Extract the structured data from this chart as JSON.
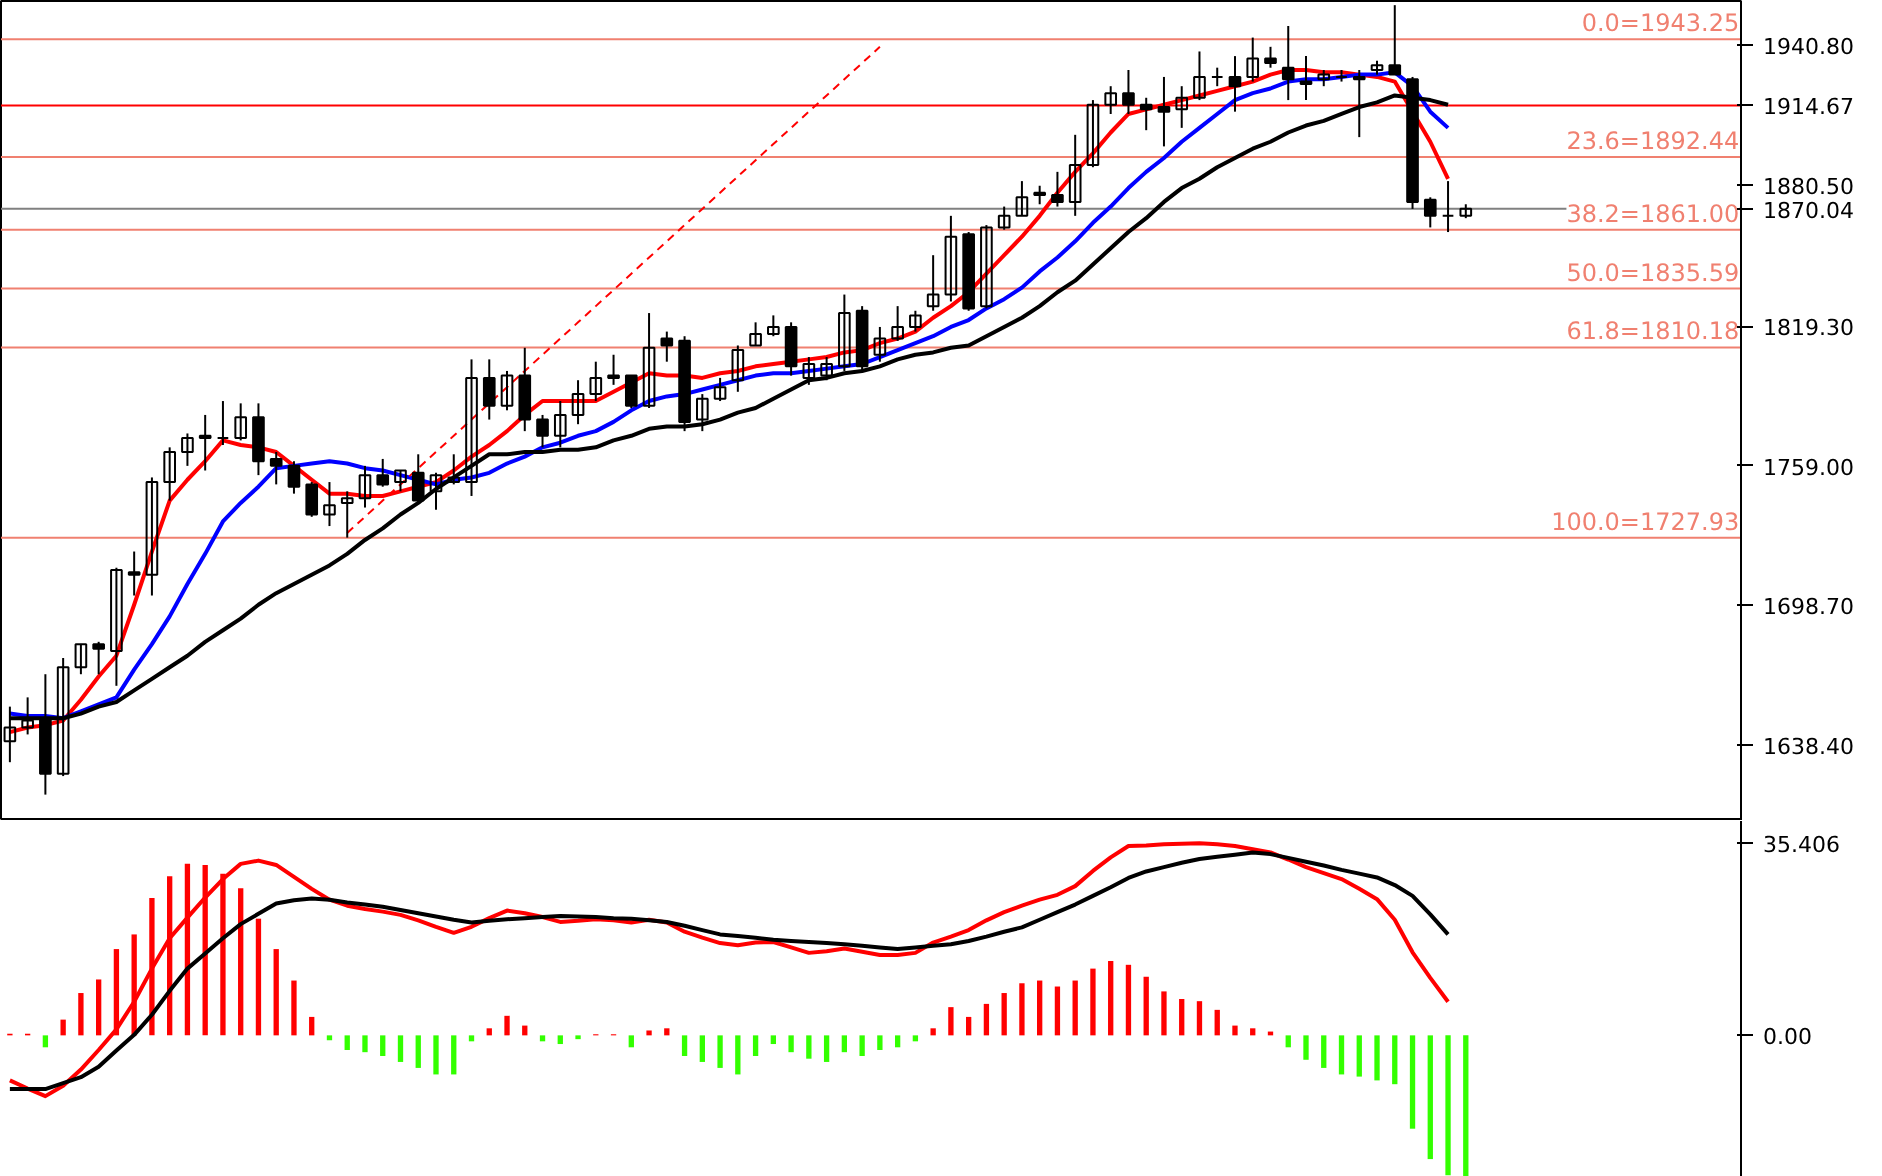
{
  "chart_data": [
    {
      "type": "candlestick",
      "categories": [
        null,
        null,
        null,
        null,
        null,
        null,
        null,
        null,
        null,
        null,
        null,
        null,
        null,
        null,
        null,
        null,
        null,
        null,
        null,
        null,
        null,
        null,
        null,
        null,
        null,
        null,
        null,
        null,
        null,
        null,
        null,
        null,
        null,
        null,
        null,
        null,
        null,
        null,
        null,
        null,
        null,
        null,
        null,
        null,
        null,
        null,
        null,
        null,
        null,
        null,
        null,
        null,
        null,
        null,
        null,
        null,
        null,
        null,
        null,
        null,
        null,
        null,
        null,
        null,
        null,
        null,
        null,
        null,
        null,
        null,
        null,
        null,
        null,
        null,
        null,
        null,
        null,
        null,
        null,
        null,
        null,
        null,
        null,
        null,
        null,
        null,
        null,
        null,
        null,
        null,
        null,
        null,
        null,
        null,
        null,
        null,
        null,
        null
      ],
      "ohlc": [
        [
          1640,
          1655,
          1631,
          1646
        ],
        [
          1646,
          1659,
          1643,
          1649
        ],
        [
          1650,
          1669,
          1617,
          1626
        ],
        [
          1626,
          1676,
          1625,
          1672
        ],
        [
          1672,
          1682,
          1669,
          1682
        ],
        [
          1682,
          1683,
          1669,
          1680
        ],
        [
          1679,
          1715,
          1664,
          1714
        ],
        [
          1713,
          1722,
          1703,
          1712
        ],
        [
          1712,
          1754,
          1703,
          1752
        ],
        [
          1752,
          1767,
          1744,
          1765
        ],
        [
          1765,
          1773,
          1759,
          1771
        ],
        [
          1772,
          1781,
          1757,
          1771
        ],
        [
          1771,
          1787,
          1768,
          1771
        ],
        [
          1771,
          1786,
          1770,
          1780
        ],
        [
          1780,
          1786,
          1755,
          1761
        ],
        [
          1762,
          1765,
          1751,
          1759
        ],
        [
          1759,
          1761,
          1747,
          1750
        ],
        [
          1751,
          1752,
          1737,
          1738
        ],
        [
          1738,
          1752,
          1733,
          1742
        ],
        [
          1743,
          1748,
          1728,
          1745
        ],
        [
          1745,
          1759,
          1741,
          1755
        ],
        [
          1755,
          1762,
          1750,
          1751
        ],
        [
          1752,
          1757,
          1748,
          1757
        ],
        [
          1756,
          1764,
          1743,
          1744
        ],
        [
          1748,
          1756,
          1740,
          1755
        ],
        [
          1752,
          1764,
          1751,
          1754
        ],
        [
          1752,
          1805,
          1746,
          1797
        ],
        [
          1797,
          1805,
          1779,
          1785
        ],
        [
          1785,
          1800,
          1783,
          1798
        ],
        [
          1798,
          1810,
          1774,
          1779
        ],
        [
          1779,
          1781,
          1767,
          1772
        ],
        [
          1772,
          1787,
          1767,
          1781
        ],
        [
          1781,
          1796,
          1777,
          1790
        ],
        [
          1790,
          1804,
          1787,
          1797
        ],
        [
          1798,
          1807,
          1794,
          1797
        ],
        [
          1798,
          1798,
          1784,
          1785
        ],
        [
          1785,
          1825,
          1784,
          1810
        ],
        [
          1814,
          1817,
          1804,
          1811
        ],
        [
          1813,
          1815,
          1774,
          1778
        ],
        [
          1779,
          1790,
          1774,
          1788
        ],
        [
          1788,
          1797,
          1787,
          1793
        ],
        [
          1796,
          1811,
          1791,
          1809
        ],
        [
          1811,
          1821,
          1811,
          1816
        ],
        [
          1816,
          1824,
          1815,
          1819
        ],
        [
          1819,
          1821,
          1798,
          1802
        ],
        [
          1797,
          1806,
          1794,
          1803
        ],
        [
          1798,
          1806,
          1796,
          1803
        ],
        [
          1802,
          1833,
          1800,
          1825
        ],
        [
          1826,
          1828,
          1800,
          1802
        ],
        [
          1807,
          1819,
          1804,
          1814
        ],
        [
          1814,
          1828,
          1813,
          1819
        ],
        [
          1819,
          1826,
          1817,
          1824
        ],
        [
          1828,
          1850,
          1826,
          1833
        ],
        [
          1833,
          1867,
          1830,
          1858
        ],
        [
          1859,
          1860,
          1826,
          1827
        ],
        [
          1828,
          1863,
          1827,
          1862
        ],
        [
          1862,
          1871,
          1861,
          1867
        ],
        [
          1867,
          1882,
          1867,
          1875
        ],
        [
          1877,
          1880,
          1872,
          1876
        ],
        [
          1876,
          1886,
          1871,
          1873
        ],
        [
          1873,
          1902,
          1867,
          1889
        ],
        [
          1889,
          1917,
          1888,
          1915
        ],
        [
          1915,
          1923,
          1911,
          1920
        ],
        [
          1920,
          1930,
          1911,
          1915
        ],
        [
          1915,
          1918,
          1904,
          1913
        ],
        [
          1914,
          1927,
          1897,
          1912
        ],
        [
          1913,
          1923,
          1905,
          1918
        ],
        [
          1918,
          1938,
          1917,
          1927
        ],
        [
          1927,
          1931,
          1923,
          1927
        ],
        [
          1927,
          1936,
          1912,
          1923
        ],
        [
          1927,
          1944,
          1925,
          1935
        ],
        [
          1935,
          1940,
          1931,
          1933
        ],
        [
          1931,
          1949,
          1917,
          1926
        ],
        [
          1925,
          1936,
          1917,
          1924
        ],
        [
          1926,
          1930,
          1923,
          1928
        ],
        [
          1927,
          1930,
          1925,
          1927
        ],
        [
          1927,
          1930,
          1901,
          1926
        ],
        [
          1930,
          1934,
          1928,
          1932
        ],
        [
          1932,
          1958,
          1928,
          1928
        ],
        [
          1926,
          1927,
          1870,
          1873
        ],
        [
          1874,
          1875,
          1862,
          1867
        ],
        [
          1867,
          1882,
          1860,
          1867
        ],
        [
          1867,
          1872,
          1866,
          1870.04
        ],
        null,
        null,
        null,
        null,
        null,
        null,
        null,
        null,
        null,
        null,
        null,
        null,
        null,
        null,
        null
      ],
      "series": [
        {
          "type": "line",
          "color": "#ff0000",
          "values": [
            1644,
            1646,
            1647,
            1649,
            1658,
            1668,
            1677,
            1699,
            1722,
            1744,
            1753,
            1761,
            1770,
            1768,
            1767,
            1765,
            1759,
            1753,
            1747,
            1747,
            1746,
            1746,
            1748,
            1750,
            1752,
            1757,
            1763,
            1768,
            1774,
            1781,
            1787,
            1787,
            1787,
            1787,
            1791,
            1795,
            1799,
            1798,
            1798,
            1797,
            1799,
            1800,
            1802,
            1803,
            1804,
            1805,
            1806,
            1808,
            1809,
            1812,
            1814,
            1817,
            1823,
            1828,
            1834,
            1842,
            1850,
            1858,
            1867,
            1877,
            1886,
            1894,
            1903,
            1911,
            1913,
            1915,
            1917,
            1919,
            1921,
            1923,
            1925,
            1928,
            1930,
            1930,
            1929,
            1929,
            1928,
            1927,
            1925,
            1912,
            1899,
            1883,
            null,
            null,
            null,
            null,
            null,
            null,
            null,
            null,
            null,
            null,
            null,
            null,
            null,
            null,
            null,
            null
          ]
        },
        {
          "type": "line",
          "color": "#0000ff",
          "values": [
            1652,
            1651,
            1651,
            1650,
            1653,
            1656,
            1659,
            1671,
            1682,
            1694,
            1708,
            1721,
            1735,
            1743,
            1750,
            1758,
            1759,
            1760,
            1761,
            1760,
            1758,
            1757,
            1755,
            1753,
            1751,
            1753,
            1754,
            1756,
            1760,
            1763,
            1767,
            1769,
            1772,
            1774,
            1778,
            1783,
            1787,
            1789,
            1790,
            1792,
            1794,
            1796,
            1798,
            1799,
            1799,
            1800,
            1801,
            1802,
            1803,
            1806,
            1809,
            1812,
            1815,
            1819,
            1822,
            1827,
            1831,
            1836,
            1843,
            1849,
            1856,
            1864,
            1871,
            1879,
            1886,
            1892,
            1899,
            1905,
            1911,
            1917,
            1920,
            1922,
            1925,
            1926,
            1926,
            1927,
            1928,
            1928,
            1929,
            1923,
            1912,
            1905,
            null,
            null,
            null,
            null,
            null,
            null,
            null,
            null,
            null,
            null,
            null,
            null,
            null,
            null,
            null,
            null
          ]
        },
        {
          "type": "line",
          "color": "#000000",
          "values": [
            1650,
            1650,
            1650,
            1650,
            1652,
            1655,
            1657,
            1662,
            1667,
            1672,
            1677,
            1683,
            1688,
            1693,
            1699,
            1704,
            1708,
            1712,
            1716,
            1721,
            1727,
            1732,
            1738,
            1743,
            1749,
            1754,
            1759,
            1764,
            1764,
            1765,
            1765,
            1766,
            1766,
            1767,
            1770,
            1772,
            1775,
            1776,
            1776,
            1777,
            1779,
            1782,
            1784,
            1788,
            1792,
            1796,
            1797,
            1799,
            1800,
            1802,
            1805,
            1807,
            1808,
            1810,
            1811,
            1815,
            1819,
            1823,
            1828,
            1834,
            1839,
            1846,
            1853,
            1860,
            1866,
            1873,
            1879,
            1883,
            1888,
            1892,
            1896,
            1899,
            1903,
            1906,
            1908,
            1911,
            1914,
            1916,
            1919,
            1918,
            1917,
            1915,
            null,
            null,
            null,
            null,
            null,
            null,
            null,
            null,
            null,
            null,
            null,
            null,
            null,
            null,
            null,
            null
          ]
        },
        {
          "type": "line",
          "color": "#ff0000",
          "line_style": "dashed",
          "values": [
            null,
            null,
            null,
            null,
            null,
            null,
            null,
            null,
            null,
            null,
            null,
            null,
            null,
            null,
            null,
            null,
            null,
            null,
            null,
            1730,
            1737,
            1744,
            1751,
            1758,
            1765,
            1772,
            1779,
            1786,
            1793,
            1800,
            1807,
            1814,
            1821,
            1828,
            1835,
            1842,
            1849,
            1856,
            1863,
            1870,
            1877,
            1884,
            1891,
            1898,
            1905,
            1912,
            1919,
            1926,
            1933,
            1940,
            null,
            null,
            null,
            null,
            null,
            null,
            null,
            null,
            null,
            null,
            null,
            null,
            null,
            null,
            null,
            null,
            null,
            null,
            null,
            null,
            null,
            null,
            null,
            null,
            null,
            null,
            null,
            null,
            null,
            null,
            null,
            null,
            null,
            null,
            null,
            null,
            null,
            null,
            null,
            null,
            null,
            null,
            null,
            null,
            null,
            null,
            null,
            null
          ]
        }
      ],
      "ylim": [
        1605.6,
        1959.8
      ],
      "yticks": [
        {
          "value": 1638.4,
          "label": "1638.40"
        },
        {
          "value": 1698.7,
          "label": "1698.70"
        },
        {
          "value": 1759,
          "label": "1759.00"
        },
        {
          "value": 1819.3,
          "label": "1819.30"
        },
        {
          "value": 1880.5,
          "label": "1880.50"
        },
        {
          "value": 1940.8,
          "label": "1940.80"
        },
        {
          "value": 1914.67,
          "label": "1914.67"
        },
        {
          "value": 1870.04,
          "label": "1870.04"
        }
      ],
      "tick_labels": "y",
      "ref_lines": [
        {
          "axis": "y",
          "value": 1943.25,
          "label": "0.0=1943.25",
          "color": "#f08070"
        },
        {
          "axis": "y",
          "value": 1892.44,
          "label": "23.6=1892.44",
          "color": "#f08070"
        },
        {
          "axis": "y",
          "value": 1861.0,
          "label": "38.2=1861.00",
          "color": "#f08070"
        },
        {
          "axis": "y",
          "value": 1835.59,
          "label": "50.0=1835.59",
          "color": "#f08070"
        },
        {
          "axis": "y",
          "value": 1810.18,
          "label": "61.8=1810.18",
          "color": "#f08070"
        },
        {
          "axis": "y",
          "value": 1727.93,
          "label": "100.0=1727.93",
          "color": "#f08070"
        },
        {
          "axis": "y",
          "value": 1914.67,
          "color": "#ff0000"
        },
        {
          "axis": "y",
          "value": 1870.04,
          "color": "#808080"
        }
      ]
    },
    {
      "type": "bar",
      "categories": [
        null,
        null,
        null,
        null,
        null,
        null,
        null,
        null,
        null,
        null,
        null,
        null,
        null,
        null,
        null,
        null,
        null,
        null,
        null,
        null,
        null,
        null,
        null,
        null,
        null,
        null,
        null,
        null,
        null,
        null,
        null,
        null,
        null,
        null,
        null,
        null,
        null,
        null,
        null,
        null,
        null,
        null,
        null,
        null,
        null,
        null,
        null,
        null,
        null,
        null,
        null,
        null,
        null,
        null,
        null,
        null,
        null,
        null,
        null,
        null,
        null,
        null,
        null,
        null,
        null,
        null,
        null,
        null,
        null,
        null,
        null,
        null,
        null,
        null,
        null,
        null,
        null,
        null,
        null,
        null,
        null,
        null,
        null,
        null,
        null,
        null,
        null,
        null,
        null,
        null,
        null,
        null,
        null,
        null,
        null,
        null,
        null,
        null
      ],
      "series": [
        {
          "type": "bar",
          "values": [
            0.3,
            0.3,
            -2.2,
            2.9,
            7.8,
            10.3,
            15.9,
            18.6,
            25.3,
            29.3,
            31.6,
            31.4,
            29.8,
            27.1,
            21.5,
            15.9,
            10.1,
            3.4,
            -0.9,
            -2.7,
            -3.1,
            -3.8,
            -4.9,
            -6.0,
            -7.2,
            -7.2,
            -1.1,
            1.3,
            3.6,
            1.8,
            -1.1,
            -1.6,
            -0.7,
            0.2,
            0.2,
            -2.2,
            0.9,
            1.3,
            -3.8,
            -4.9,
            -6.0,
            -7.2,
            -3.8,
            -1.6,
            -3.1,
            -4.3,
            -4.9,
            -3.1,
            -3.8,
            -2.7,
            -2.2,
            -1.1,
            1.3,
            5.2,
            3.4,
            5.8,
            7.8,
            9.6,
            10.1,
            9.0,
            10.1,
            12.3,
            13.7,
            13.0,
            10.8,
            8.1,
            6.7,
            6.3,
            4.7,
            1.8,
            1.3,
            0.7,
            -2.2,
            -4.5,
            -6.0,
            -7.2,
            -7.6,
            -8.3,
            -9.0,
            -17.2,
            -22.8,
            -25.8,
            -26.0,
            null,
            null,
            null,
            null,
            null,
            null,
            null,
            null,
            null,
            null,
            null,
            null,
            null,
            null,
            null
          ],
          "colors": [
            "#ff0000",
            "#ff0000",
            "#33ff00",
            "#ff0000",
            "#ff0000",
            "#ff0000",
            "#ff0000",
            "#ff0000",
            "#ff0000",
            "#ff0000",
            "#ff0000",
            "#ff0000",
            "#ff0000",
            "#ff0000",
            "#ff0000",
            "#ff0000",
            "#ff0000",
            "#ff0000",
            "#33ff00",
            "#33ff00",
            "#33ff00",
            "#33ff00",
            "#33ff00",
            "#33ff00",
            "#33ff00",
            "#33ff00",
            "#33ff00",
            "#ff0000",
            "#ff0000",
            "#ff0000",
            "#33ff00",
            "#33ff00",
            "#33ff00",
            "#ff0000",
            "#ff0000",
            "#33ff00",
            "#ff0000",
            "#ff0000",
            "#33ff00",
            "#33ff00",
            "#33ff00",
            "#33ff00",
            "#33ff00",
            "#33ff00",
            "#33ff00",
            "#33ff00",
            "#33ff00",
            "#33ff00",
            "#33ff00",
            "#33ff00",
            "#33ff00",
            "#33ff00",
            "#ff0000",
            "#ff0000",
            "#ff0000",
            "#ff0000",
            "#ff0000",
            "#ff0000",
            "#ff0000",
            "#ff0000",
            "#ff0000",
            "#ff0000",
            "#ff0000",
            "#ff0000",
            "#ff0000",
            "#ff0000",
            "#ff0000",
            "#ff0000",
            "#ff0000",
            "#ff0000",
            "#ff0000",
            "#ff0000",
            "#33ff00",
            "#33ff00",
            "#33ff00",
            "#33ff00",
            "#33ff00",
            "#33ff00",
            "#33ff00",
            "#33ff00",
            "#33ff00",
            "#33ff00",
            "#33ff00",
            null,
            null,
            null,
            null,
            null,
            null,
            null,
            null,
            null,
            null,
            null,
            null,
            null,
            null,
            null
          ]
        },
        {
          "type": "line",
          "color": "#ff0000",
          "values": [
            -8.3,
            -9.8,
            -11.2,
            -9.3,
            -6.3,
            -2.7,
            1.1,
            6.2,
            12.3,
            17.9,
            21.7,
            25.4,
            28.8,
            31.6,
            32.2,
            31.4,
            29.2,
            27.0,
            25.0,
            23.9,
            23.3,
            22.8,
            22.2,
            21.2,
            20.0,
            18.9,
            20.0,
            21.6,
            23.0,
            22.5,
            21.8,
            20.9,
            21.1,
            21.4,
            21.2,
            20.8,
            21.3,
            20.8,
            19.1,
            18.0,
            17.0,
            16.6,
            17.1,
            17.2,
            16.2,
            15.2,
            15.5,
            16.0,
            15.4,
            14.8,
            14.8,
            15.2,
            17.1,
            18.2,
            19.4,
            21.2,
            22.7,
            23.9,
            25.0,
            25.9,
            27.5,
            30.3,
            32.8,
            34.9,
            35.0,
            35.2,
            35.3,
            35.4,
            35.2,
            34.9,
            34.3,
            33.7,
            32.4,
            31.0,
            29.9,
            28.8,
            27.0,
            25.1,
            21.3,
            15.3,
            10.6,
            6.2,
            null,
            null,
            null,
            null,
            null,
            null,
            null,
            null,
            null,
            null,
            null,
            null,
            null,
            null,
            null,
            null
          ]
        },
        {
          "type": "line",
          "color": "#000000",
          "values": [
            -9.9,
            -9.9,
            -9.9,
            -8.8,
            -7.7,
            -5.8,
            -2.8,
            0.1,
            3.8,
            8.2,
            12.3,
            15.1,
            17.9,
            20.5,
            22.4,
            24.3,
            24.9,
            25.2,
            25.0,
            24.5,
            24.1,
            23.7,
            23.1,
            22.5,
            21.9,
            21.3,
            20.8,
            21.1,
            21.4,
            21.6,
            21.8,
            22.0,
            21.9,
            21.8,
            21.6,
            21.5,
            21.2,
            20.9,
            20.2,
            19.4,
            18.6,
            18.3,
            18.0,
            17.6,
            17.4,
            17.2,
            17.0,
            16.8,
            16.5,
            16.2,
            15.9,
            16.2,
            16.5,
            16.8,
            17.4,
            18.2,
            19.1,
            19.9,
            21.3,
            22.7,
            24.1,
            25.7,
            27.3,
            29.0,
            30.2,
            31.0,
            31.8,
            32.5,
            32.9,
            33.3,
            33.7,
            33.4,
            32.7,
            32.0,
            31.3,
            30.5,
            29.8,
            29.1,
            27.7,
            25.7,
            22.3,
            18.6,
            null,
            null,
            null,
            null,
            null,
            null,
            null,
            null,
            null,
            null,
            null,
            null,
            null,
            null,
            null,
            null
          ]
        }
      ],
      "ylim": [
        -26.1,
        39.5
      ],
      "yticks": [
        35.406,
        {
          "value": 0,
          "label": "0.00"
        }
      ],
      "tick_labels": "y"
    }
  ]
}
